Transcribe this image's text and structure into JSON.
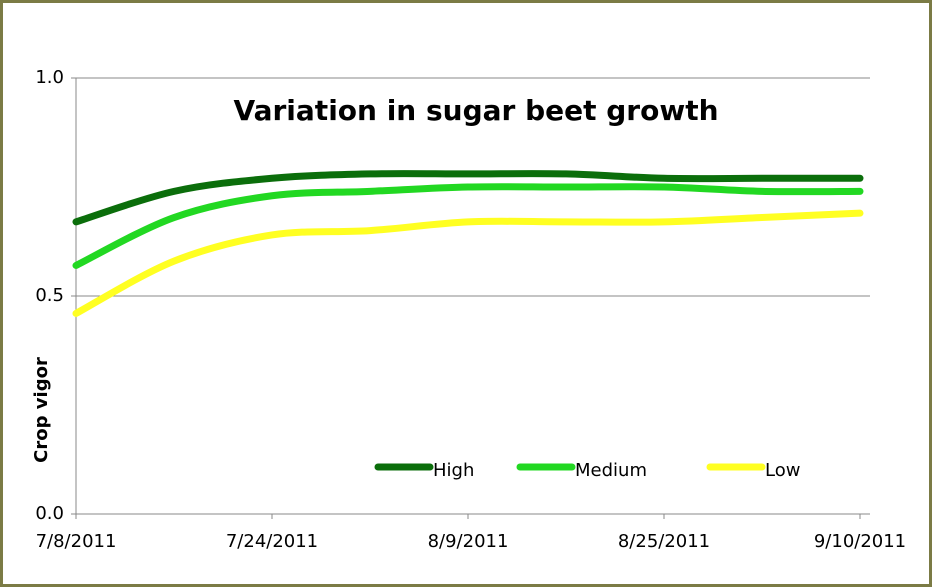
{
  "chart_data": {
    "type": "line",
    "title": "Variation in sugar beet growth",
    "y_label": "Crop vigor",
    "x": [
      "7/8/2011",
      "7/16/2011",
      "7/24/2011",
      "8/1/2011",
      "8/9/2011",
      "8/17/2011",
      "8/25/2011",
      "9/2/2011",
      "9/10/2011"
    ],
    "series": [
      {
        "name": "High",
        "color": "#0b6e0b",
        "values": [
          0.67,
          0.74,
          0.77,
          0.78,
          0.78,
          0.78,
          0.77,
          0.77,
          0.77
        ]
      },
      {
        "name": "Medium",
        "color": "#22d822",
        "values": [
          0.57,
          0.68,
          0.73,
          0.74,
          0.75,
          0.75,
          0.75,
          0.74,
          0.74
        ]
      },
      {
        "name": "Low",
        "color": "#ffff22",
        "values": [
          0.46,
          0.58,
          0.64,
          0.65,
          0.67,
          0.67,
          0.67,
          0.68,
          0.69
        ]
      }
    ],
    "xlim": [
      "7/8/2011",
      "9/10/2011"
    ],
    "xticks": [
      "7/8/2011",
      "7/24/2011",
      "8/9/2011",
      "8/25/2011",
      "9/10/2011"
    ],
    "ylim": [
      0,
      1
    ],
    "yticks": [
      {
        "value": 0,
        "label": "0.0"
      },
      0.5,
      {
        "value": 1,
        "label": "1.0"
      }
    ],
    "grid": true,
    "legend": "bottom"
  }
}
